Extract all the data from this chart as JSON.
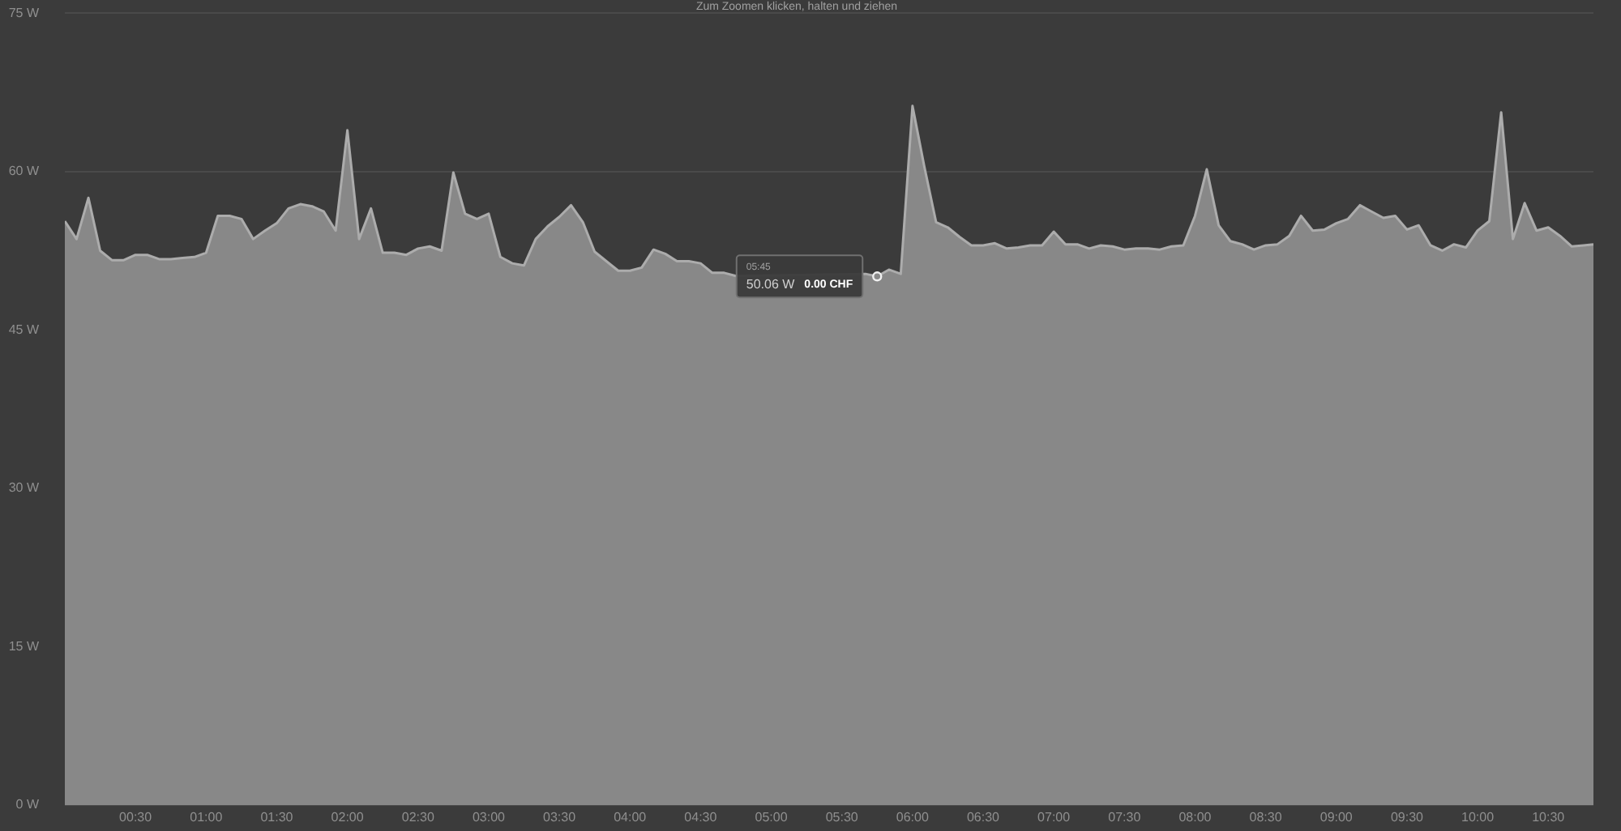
{
  "chart_data": {
    "type": "area",
    "title": "Zum Zoomen klicken, halten und ziehen",
    "x": [
      0,
      0.083,
      0.167,
      0.25,
      0.333,
      0.417,
      0.5,
      0.583,
      0.667,
      0.75,
      0.833,
      0.917,
      1,
      1.083,
      1.167,
      1.25,
      1.333,
      1.417,
      1.5,
      1.583,
      1.667,
      1.75,
      1.833,
      1.917,
      2,
      2.083,
      2.167,
      2.25,
      2.333,
      2.417,
      2.5,
      2.583,
      2.667,
      2.75,
      2.833,
      2.917,
      3,
      3.083,
      3.167,
      3.25,
      3.333,
      3.417,
      3.5,
      3.583,
      3.667,
      3.75,
      3.833,
      3.917,
      4,
      4.083,
      4.167,
      4.25,
      4.333,
      4.417,
      4.5,
      4.583,
      4.667,
      4.75,
      4.833,
      4.917,
      5,
      5.083,
      5.167,
      5.25,
      5.333,
      5.417,
      5.5,
      5.583,
      5.667,
      5.75,
      5.833,
      5.917,
      6,
      6.083,
      6.167,
      6.25,
      6.333,
      6.417,
      6.5,
      6.583,
      6.667,
      6.75,
      6.833,
      6.917,
      7,
      7.083,
      7.167,
      7.25,
      7.333,
      7.417,
      7.5,
      7.583,
      7.667,
      7.75,
      7.833,
      7.917,
      8,
      8.083,
      8.167,
      8.25,
      8.333,
      8.417,
      8.5,
      8.583,
      8.667,
      8.75,
      8.833,
      8.917,
      9,
      9.083,
      9.167,
      9.25,
      9.333,
      9.417,
      9.5,
      9.583,
      9.667,
      9.75,
      9.833,
      9.917,
      10,
      10.083,
      10.167,
      10.25,
      10.333,
      10.417,
      10.5,
      10.583,
      10.667,
      10.75,
      10.82
    ],
    "values": [
      55.3,
      53.6,
      57.5,
      52.5,
      51.6,
      51.6,
      52.1,
      52.1,
      51.7,
      51.7,
      51.8,
      51.9,
      52.3,
      55.8,
      55.8,
      55.5,
      53.6,
      54.4,
      55.1,
      56.5,
      56.9,
      56.7,
      56.2,
      54.4,
      63.9,
      53.6,
      56.5,
      52.3,
      52.3,
      52.1,
      52.7,
      52.9,
      52.5,
      59.9,
      56.0,
      55.5,
      56.0,
      51.9,
      51.3,
      51.1,
      53.6,
      54.8,
      55.7,
      56.8,
      55.2,
      52.4,
      51.5,
      50.6,
      50.6,
      50.9,
      52.6,
      52.2,
      51.5,
      51.5,
      51.3,
      50.4,
      50.4,
      50.1,
      null,
      null,
      null,
      null,
      null,
      null,
      null,
      null,
      null,
      null,
      50.3,
      50.06,
      50.7,
      50.3,
      66.2,
      60.5,
      55.2,
      54.7,
      53.8,
      53.0,
      53.0,
      53.2,
      52.7,
      52.8,
      53.0,
      53.0,
      54.3,
      53.1,
      53.1,
      52.7,
      53.0,
      52.9,
      52.6,
      52.7,
      52.7,
      52.6,
      52.9,
      53.0,
      55.8,
      60.2,
      54.9,
      53.4,
      53.1,
      52.6,
      53.0,
      53.1,
      53.9,
      55.8,
      54.4,
      54.5,
      55.1,
      55.5,
      56.8,
      56.2,
      55.6,
      55.8,
      54.5,
      54.9,
      53.0,
      52.5,
      53.1,
      52.8,
      54.4,
      55.3,
      65.6,
      53.6,
      57.0,
      54.4,
      54.7,
      53.9,
      52.9,
      53.0,
      53.1
    ],
    "color": "#888888",
    "xlim": [
      0,
      10.82
    ],
    "xticks": [
      {
        "value": 0.5,
        "label": "00:30"
      },
      {
        "value": 1,
        "label": "01:00"
      },
      {
        "value": 1.5,
        "label": "01:30"
      },
      {
        "value": 2,
        "label": "02:00"
      },
      {
        "value": 2.5,
        "label": "02:30"
      },
      {
        "value": 3,
        "label": "03:00"
      },
      {
        "value": 3.5,
        "label": "03:30"
      },
      {
        "value": 4,
        "label": "04:00"
      },
      {
        "value": 4.5,
        "label": "04:30"
      },
      {
        "value": 5,
        "label": "05:00"
      },
      {
        "value": 5.5,
        "label": "05:30"
      },
      {
        "value": 6,
        "label": "06:00"
      },
      {
        "value": 6.5,
        "label": "06:30"
      },
      {
        "value": 7,
        "label": "07:00"
      },
      {
        "value": 7.5,
        "label": "07:30"
      },
      {
        "value": 8,
        "label": "08:00"
      },
      {
        "value": 8.5,
        "label": "08:30"
      },
      {
        "value": 9,
        "label": "09:00"
      },
      {
        "value": 9.5,
        "label": "09:30"
      },
      {
        "value": 10,
        "label": "10:00"
      },
      {
        "value": 10.5,
        "label": "10:30"
      }
    ],
    "ylim": [
      0,
      75
    ],
    "yticks": [
      {
        "value": 0,
        "label": "0 W"
      },
      {
        "value": 15,
        "label": "15 W"
      },
      {
        "value": 30,
        "label": "30 W"
      },
      {
        "value": 45,
        "label": "45 W"
      },
      {
        "value": 60,
        "label": "60 W"
      },
      {
        "value": 75,
        "label": "75 W"
      }
    ],
    "grid": "y",
    "annotations": [
      "05:45",
      "50.06 W",
      {
        "text": "0.00 CHF",
        "x": 5.75,
        "y": 50.06
      }
    ]
  }
}
